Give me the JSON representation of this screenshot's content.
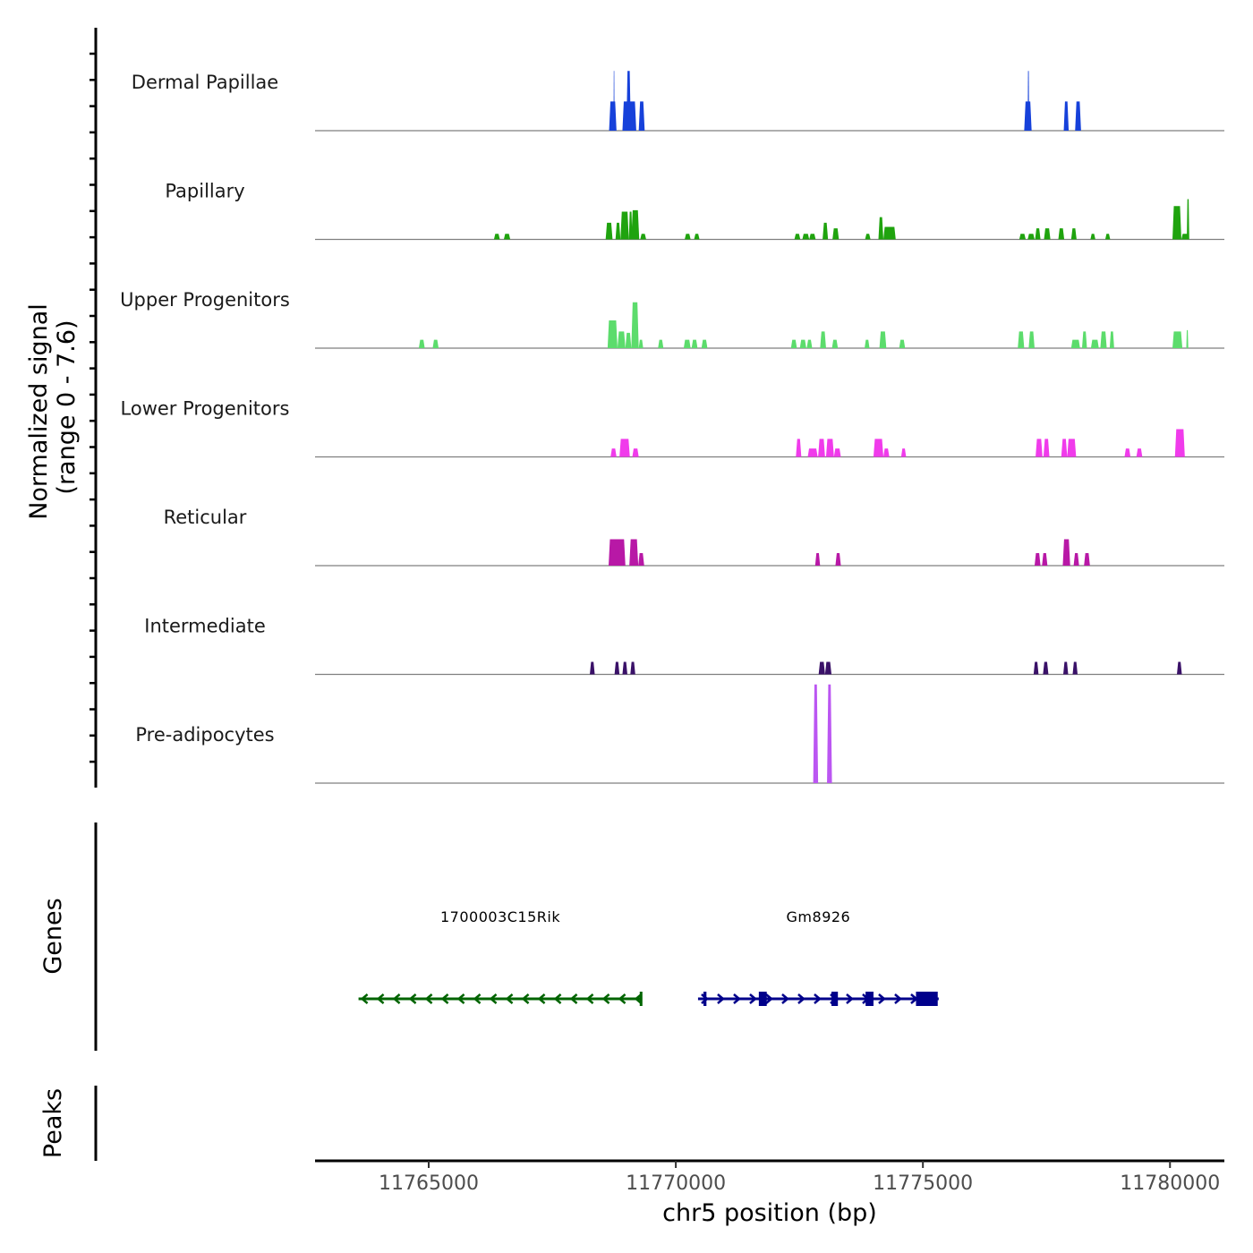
{
  "chart_data": {
    "type": "area",
    "title": "",
    "ylabel": "Normalized signal\n(range 0 - 7.6)",
    "ylabel_lines": [
      "Normalized signal",
      "(range 0 - 7.6)"
    ],
    "xlabel": "chr5 position (bp)",
    "chromosome": "chr5",
    "xlim": [
      11762700,
      11781100
    ],
    "ylim": [
      0,
      7.6
    ],
    "x_ticks": [
      11765000,
      11770000,
      11775000,
      11780000
    ],
    "x_tick_labels": [
      "11765000",
      "11770000",
      "11775000",
      "11780000"
    ],
    "grid": false,
    "legend": "none",
    "tracks": [
      {
        "name": "Dermal Papillae",
        "color": "#1641DA",
        "peaks": [
          [
            11768650,
            11768800,
            2.1
          ],
          [
            11768740,
            11768760,
            4.3
          ],
          [
            11768920,
            11769200,
            2.1
          ],
          [
            11769000,
            11769090,
            4.3
          ],
          [
            11769250,
            11769370,
            2.1
          ],
          [
            11777050,
            11777200,
            2.1
          ],
          [
            11777120,
            11777150,
            4.3
          ],
          [
            11777850,
            11777950,
            2.1
          ],
          [
            11778080,
            11778200,
            2.1
          ]
        ]
      },
      {
        "name": "Papillary",
        "color": "#1FA30E",
        "peaks": [
          [
            11766320,
            11766440,
            0.4
          ],
          [
            11766520,
            11766650,
            0.4
          ],
          [
            11768580,
            11768720,
            1.2
          ],
          [
            11768780,
            11768880,
            1.2
          ],
          [
            11768880,
            11769050,
            2.0
          ],
          [
            11769050,
            11769120,
            2.0
          ],
          [
            11769100,
            11769260,
            2.1
          ],
          [
            11769280,
            11769400,
            0.4
          ],
          [
            11770180,
            11770300,
            0.4
          ],
          [
            11770370,
            11770480,
            0.4
          ],
          [
            11772400,
            11772520,
            0.4
          ],
          [
            11772560,
            11772700,
            0.4
          ],
          [
            11772700,
            11772830,
            0.4
          ],
          [
            11772970,
            11773080,
            1.2
          ],
          [
            11773170,
            11773300,
            0.8
          ],
          [
            11773830,
            11773940,
            0.4
          ],
          [
            11774100,
            11774200,
            1.6
          ],
          [
            11774200,
            11774450,
            0.9
          ],
          [
            11776950,
            11777080,
            0.4
          ],
          [
            11777120,
            11777260,
            0.4
          ],
          [
            11777270,
            11777380,
            0.8
          ],
          [
            11777450,
            11777580,
            0.8
          ],
          [
            11777740,
            11777860,
            0.8
          ],
          [
            11778000,
            11778110,
            0.8
          ],
          [
            11778390,
            11778490,
            0.4
          ],
          [
            11778690,
            11778790,
            0.4
          ],
          [
            11780050,
            11780230,
            2.4
          ],
          [
            11780230,
            11780380,
            0.4
          ],
          [
            11780340,
            11780390,
            2.9
          ]
        ]
      },
      {
        "name": "Upper Progenitors",
        "color": "#5CDC6C",
        "peaks": [
          [
            11764800,
            11764920,
            0.6
          ],
          [
            11765080,
            11765200,
            0.6
          ],
          [
            11768620,
            11768820,
            2.0
          ],
          [
            11768820,
            11768980,
            1.2
          ],
          [
            11768980,
            11769100,
            1.1
          ],
          [
            11769100,
            11769250,
            3.3
          ],
          [
            11769250,
            11769340,
            0.6
          ],
          [
            11769640,
            11769750,
            0.6
          ],
          [
            11770160,
            11770300,
            0.6
          ],
          [
            11770320,
            11770440,
            0.6
          ],
          [
            11770520,
            11770640,
            0.6
          ],
          [
            11772330,
            11772450,
            0.6
          ],
          [
            11772510,
            11772640,
            0.6
          ],
          [
            11772650,
            11772760,
            0.6
          ],
          [
            11772920,
            11773040,
            1.2
          ],
          [
            11773160,
            11773280,
            0.6
          ],
          [
            11773820,
            11773920,
            0.6
          ],
          [
            11774120,
            11774260,
            1.2
          ],
          [
            11774520,
            11774640,
            0.6
          ],
          [
            11776920,
            11777050,
            1.2
          ],
          [
            11777140,
            11777260,
            1.2
          ],
          [
            11778000,
            11778180,
            0.6
          ],
          [
            11778220,
            11778320,
            1.2
          ],
          [
            11778400,
            11778560,
            0.6
          ],
          [
            11778590,
            11778720,
            1.2
          ],
          [
            11778780,
            11778870,
            1.2
          ],
          [
            11780050,
            11780250,
            1.2
          ],
          [
            11780330,
            11780370,
            1.3
          ]
        ]
      },
      {
        "name": "Lower Progenitors",
        "color": "#F03BEB",
        "peaks": [
          [
            11768680,
            11768800,
            0.6
          ],
          [
            11768860,
            11769070,
            1.3
          ],
          [
            11769120,
            11769250,
            0.6
          ],
          [
            11772430,
            11772540,
            1.3
          ],
          [
            11772670,
            11772870,
            0.6
          ],
          [
            11772880,
            11773020,
            1.3
          ],
          [
            11773040,
            11773200,
            1.3
          ],
          [
            11773200,
            11773340,
            0.6
          ],
          [
            11774000,
            11774200,
            1.3
          ],
          [
            11774200,
            11774320,
            0.6
          ],
          [
            11774560,
            11774660,
            0.6
          ],
          [
            11777280,
            11777420,
            1.3
          ],
          [
            11777440,
            11777560,
            1.3
          ],
          [
            11777800,
            11777920,
            1.3
          ],
          [
            11777920,
            11778100,
            1.3
          ],
          [
            11779080,
            11779200,
            0.6
          ],
          [
            11779320,
            11779440,
            0.6
          ],
          [
            11780100,
            11780300,
            2.0
          ]
        ]
      },
      {
        "name": "Reticular",
        "color": "#B818A6",
        "peaks": [
          [
            11768640,
            11768980,
            1.9
          ],
          [
            11769060,
            11769240,
            1.9
          ],
          [
            11769240,
            11769360,
            0.9
          ],
          [
            11772820,
            11772920,
            0.9
          ],
          [
            11773230,
            11773340,
            0.9
          ],
          [
            11777260,
            11777380,
            0.9
          ],
          [
            11777410,
            11777520,
            0.9
          ],
          [
            11777830,
            11777980,
            1.9
          ],
          [
            11778050,
            11778160,
            0.9
          ],
          [
            11778260,
            11778380,
            0.9
          ]
        ]
      },
      {
        "name": "Intermediate",
        "color": "#3A1168",
        "peaks": [
          [
            11768260,
            11768360,
            0.9
          ],
          [
            11768760,
            11768860,
            0.9
          ],
          [
            11768920,
            11769020,
            0.9
          ],
          [
            11769080,
            11769180,
            0.9
          ],
          [
            11772890,
            11773020,
            0.9
          ],
          [
            11773020,
            11773150,
            0.9
          ],
          [
            11777240,
            11777340,
            0.9
          ],
          [
            11777430,
            11777540,
            0.9
          ],
          [
            11777840,
            11777940,
            0.9
          ],
          [
            11778030,
            11778130,
            0.9
          ],
          [
            11780140,
            11780240,
            0.9
          ]
        ]
      },
      {
        "name": "Pre-adipocytes",
        "color": "#BB56F2",
        "peaks": [
          [
            11772780,
            11772880,
            7.1
          ],
          [
            11773060,
            11773160,
            7.1
          ]
        ]
      }
    ],
    "genes_track": {
      "label": "Genes",
      "genes": [
        {
          "name": "1700003C15Rik",
          "strand": "-",
          "color": "#006400",
          "start": 11763580,
          "end": 11769320,
          "exons": [
            [
              11769270,
              11769320
            ]
          ]
        },
        {
          "name": "Gm8926",
          "strand": "+",
          "color": "#00008B",
          "start": 11770450,
          "end": 11775320,
          "exons": [
            [
              11770560,
              11770620
            ],
            [
              11771680,
              11771840
            ],
            [
              11773150,
              11773280
            ],
            [
              11773840,
              11774000
            ],
            [
              11774860,
              11775300
            ]
          ]
        }
      ]
    },
    "peaks_track": {
      "label": "Peaks",
      "peaks": []
    }
  }
}
